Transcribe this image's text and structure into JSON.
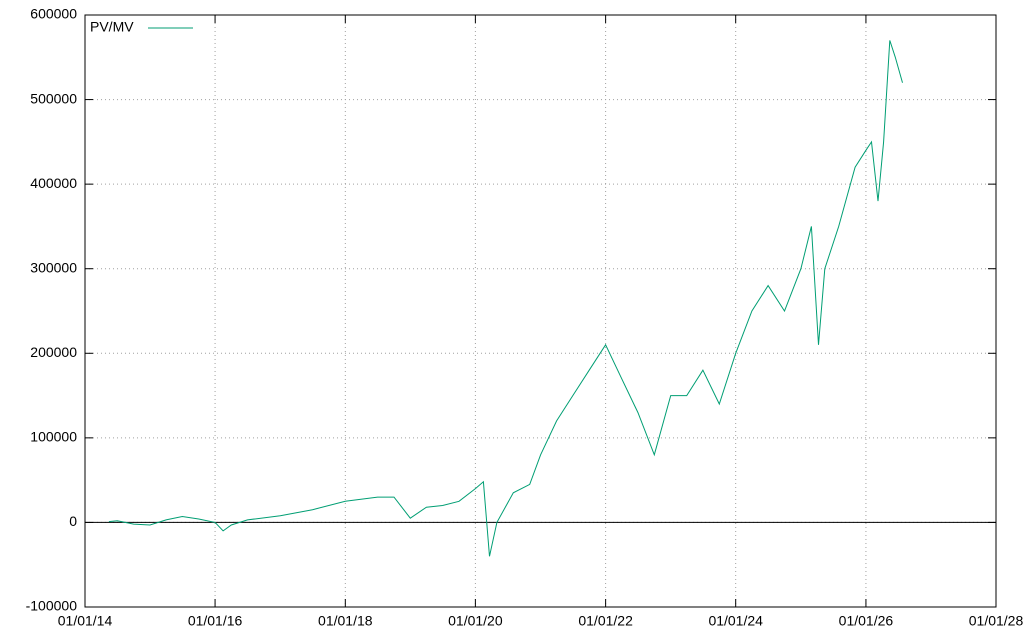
{
  "chart_data": {
    "type": "line",
    "x": [
      "2014-05-15",
      "2014-07-01",
      "2014-10-01",
      "2015-01-01",
      "2015-04-01",
      "2015-07-01",
      "2015-10-01",
      "2016-01-01",
      "2016-02-15",
      "2016-04-01",
      "2016-07-01",
      "2017-01-01",
      "2017-07-01",
      "2018-01-01",
      "2018-07-01",
      "2018-10-01",
      "2019-01-01",
      "2019-04-01",
      "2019-07-01",
      "2019-10-01",
      "2020-01-01",
      "2020-02-15",
      "2020-03-20",
      "2020-05-01",
      "2020-08-01",
      "2020-11-01",
      "2021-01-01",
      "2021-04-01",
      "2021-07-01",
      "2021-10-01",
      "2022-01-01",
      "2022-04-01",
      "2022-07-01",
      "2022-10-01",
      "2023-01-01",
      "2023-04-01",
      "2023-07-01",
      "2023-10-01",
      "2024-01-01",
      "2024-04-01",
      "2024-07-01",
      "2024-10-01",
      "2025-01-01",
      "2025-03-01",
      "2025-04-10",
      "2025-05-15",
      "2025-08-01",
      "2025-11-01",
      "2026-01-01",
      "2026-02-01",
      "2026-03-10",
      "2026-04-10",
      "2026-05-15",
      "2026-06-15",
      "2026-07-25"
    ],
    "series": [
      {
        "name": "PV/MV",
        "color": "#009e73",
        "values": [
          1000,
          2000,
          -2000,
          -3000,
          3000,
          7000,
          4000,
          0,
          -10000,
          -3000,
          3000,
          8000,
          15000,
          25000,
          30000,
          30000,
          5000,
          18000,
          20000,
          25000,
          40000,
          48000,
          -40000,
          0,
          35000,
          45000,
          80000,
          120000,
          150000,
          180000,
          210000,
          170000,
          130000,
          80000,
          150000,
          150000,
          180000,
          140000,
          200000,
          250000,
          280000,
          250000,
          300000,
          350000,
          210000,
          300000,
          350000,
          420000,
          440000,
          450000,
          380000,
          450000,
          570000,
          550000,
          520000
        ]
      }
    ],
    "xlim": [
      "2014-01-01",
      "2028-01-01"
    ],
    "xticks": [
      {
        "value": "2014-01-01",
        "label": "01/01/14"
      },
      {
        "value": "2016-01-01",
        "label": "01/01/16"
      },
      {
        "value": "2018-01-01",
        "label": "01/01/18"
      },
      {
        "value": "2020-01-01",
        "label": "01/01/20"
      },
      {
        "value": "2022-01-01",
        "label": "01/01/22"
      },
      {
        "value": "2024-01-01",
        "label": "01/01/24"
      },
      {
        "value": "2026-01-01",
        "label": "01/01/26"
      },
      {
        "value": "2028-01-01",
        "label": "01/01/28"
      }
    ],
    "ylim": [
      -100000,
      600000
    ],
    "yticks": [
      -100000,
      0,
      100000,
      200000,
      300000,
      400000,
      500000,
      600000
    ],
    "grid": true,
    "legend": "top-left"
  }
}
